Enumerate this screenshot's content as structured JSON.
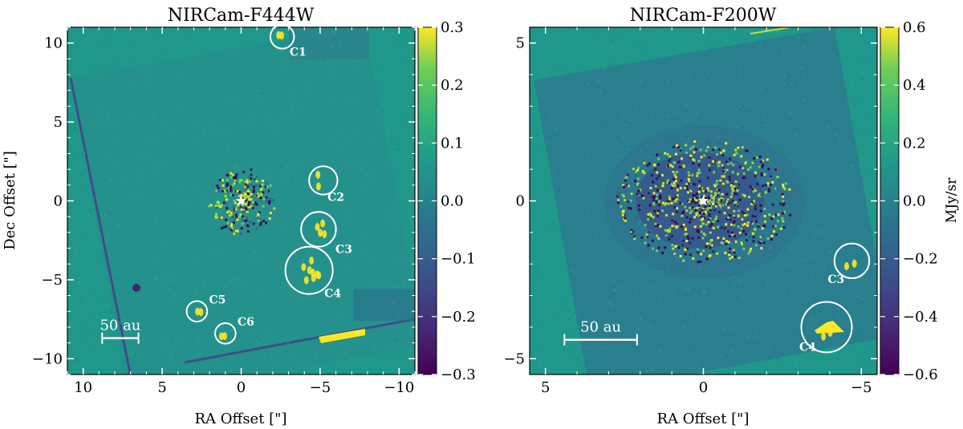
{
  "panels": [
    {
      "title": "NIRCam-F444W",
      "xlabel": "RA Offset [\"]",
      "ylabel": "Dec Offset [\"]",
      "x_range": [
        11,
        -11
      ],
      "y_range": [
        -11,
        11
      ],
      "x_ticks": [
        10,
        5,
        0,
        -5,
        -10
      ],
      "x_tick_labels": [
        "10",
        "5",
        "0",
        "−5",
        "−10"
      ],
      "y_ticks": [
        10,
        5,
        0,
        -5,
        -10
      ],
      "y_tick_labels": [
        "10",
        "5",
        "0",
        "−5",
        "−10"
      ],
      "colorbar": {
        "range": [
          -0.3,
          0.3
        ],
        "ticks": [
          0.3,
          0.2,
          0.1,
          0.0,
          -0.1,
          -0.2,
          -0.3
        ],
        "tick_labels": [
          "0.3",
          "0.2",
          "0.1",
          "0.0",
          "−0.1",
          "−0.2",
          "−0.3"
        ],
        "label": ""
      },
      "scale_bar": {
        "label": "50 au",
        "ra_start": 8.8,
        "ra_end": 6.5,
        "dec": -8.7
      },
      "star": {
        "ra": 0,
        "dec": 0
      },
      "candidates": [
        {
          "label": "C1",
          "ra": -2.6,
          "dec": 10.4,
          "r": 0.75,
          "lab_ra": -3.6,
          "lab_dec": 9.2
        },
        {
          "label": "C2",
          "ra": -5.2,
          "dec": 1.3,
          "r": 0.9,
          "lab_ra": -6.0,
          "lab_dec": 0.0
        },
        {
          "label": "C3",
          "ra": -4.9,
          "dec": -1.8,
          "r": 1.1,
          "lab_ra": -6.5,
          "lab_dec": -3.3
        },
        {
          "label": "C4",
          "ra": -4.3,
          "dec": -4.4,
          "r": 1.5,
          "lab_ra": -5.8,
          "lab_dec": -6.1
        },
        {
          "label": "C5",
          "ra": 2.8,
          "dec": -7.0,
          "r": 0.65,
          "lab_ra": 1.5,
          "lab_dec": -6.5
        },
        {
          "label": "C6",
          "ra": 1.0,
          "dec": -8.4,
          "r": 0.65,
          "lab_ra": -0.3,
          "lab_dec": -7.9
        }
      ]
    },
    {
      "title": "NIRCam-F200W",
      "xlabel": "RA Offset [\"]",
      "ylabel": "",
      "x_range": [
        5.5,
        -5.5
      ],
      "y_range": [
        -5.5,
        5.5
      ],
      "x_ticks": [
        5,
        0,
        -5
      ],
      "x_tick_labels": [
        "5",
        "0",
        "−5"
      ],
      "y_ticks": [
        5,
        0,
        -5
      ],
      "y_tick_labels": [
        "5",
        "0",
        "−5"
      ],
      "colorbar": {
        "range": [
          -0.6,
          0.6
        ],
        "ticks": [
          0.6,
          0.4,
          0.2,
          0.0,
          -0.2,
          -0.4,
          -0.6
        ],
        "tick_labels": [
          "0.6",
          "0.4",
          "0.2",
          "0.0",
          "−0.2",
          "−0.4",
          "−0.6"
        ],
        "label": "MJy/sr"
      },
      "scale_bar": {
        "label": "50 au",
        "ra_start": 4.4,
        "ra_end": 2.1,
        "dec": -4.4
      },
      "star": {
        "ra": 0,
        "dec": 0
      },
      "candidates": [
        {
          "label": "C3",
          "ra": -4.7,
          "dec": -1.9,
          "r": 0.55,
          "lab_ra": -4.2,
          "lab_dec": -2.6
        },
        {
          "label": "C4",
          "ra": -3.9,
          "dec": -4.0,
          "r": 0.8,
          "lab_ra": -3.3,
          "lab_dec": -4.75
        }
      ]
    }
  ],
  "colors": {
    "background": "#1f988b",
    "edge_blue": "#3d4e8a",
    "bright_yellow": "#fde725",
    "dark_purple": "#440154",
    "noise_light": "#6ccd5a",
    "noise_dark": "#31688e"
  }
}
